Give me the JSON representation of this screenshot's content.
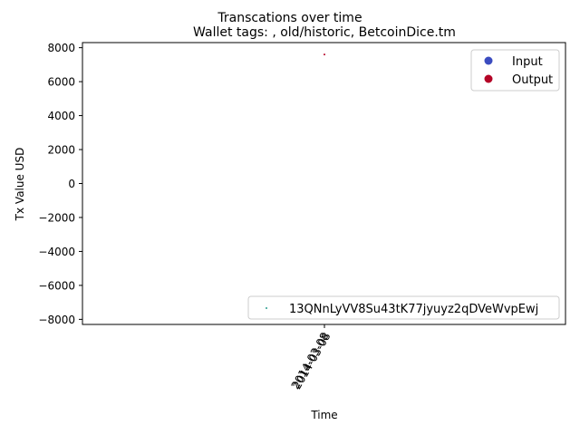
{
  "chart_data": {
    "type": "scatter",
    "suptitle": "Transcations over time",
    "title": "Wallet tags: , old/historic, BetcoinDice.tm",
    "xlabel": "Time",
    "ylabel": "Tx Value USD",
    "ylim": [
      -8300,
      8300
    ],
    "yticks": [
      -8000,
      -6000,
      -4000,
      -2000,
      0,
      2000,
      4000,
      6000,
      8000
    ],
    "xtick_labels": [
      "2014-03-08",
      "2014-03-08"
    ],
    "xtick_rotation": 60,
    "grid": false,
    "series": [
      {
        "name": "Input",
        "color": "#3b4cc0",
        "points": []
      },
      {
        "name": "Output",
        "color": "#b40426",
        "points": [
          {
            "x": "2014-03-08",
            "y": 7600
          }
        ]
      }
    ],
    "address_series": {
      "name": "13QNnLyVV8Su43tK77jyuyz2qDVeWvpEwj",
      "color": "#2a9d8f"
    },
    "legends": [
      {
        "placement": "upper right",
        "entries": [
          "Input",
          "Output"
        ]
      },
      {
        "placement": "lower right",
        "entries": [
          "13QNnLyVV8Su43tK77jyuyz2qDVeWvpEwj"
        ]
      }
    ]
  }
}
